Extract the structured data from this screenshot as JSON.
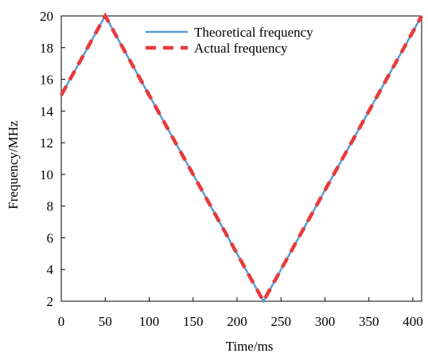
{
  "chart_data": {
    "type": "line",
    "xlabel": "Time/ms",
    "ylabel": "Frequency/MHz",
    "xlim": [
      0,
      410
    ],
    "ylim": [
      2,
      20
    ],
    "xticks": [
      0,
      50,
      100,
      150,
      200,
      250,
      300,
      350,
      400
    ],
    "yticks": [
      2,
      4,
      6,
      8,
      10,
      12,
      14,
      16,
      18,
      20
    ],
    "grid": false,
    "legend_position": "top-center",
    "series": [
      {
        "name": "Theoretical frequency",
        "style": "solid",
        "color": "#5B9BD5",
        "x": [
          0,
          50,
          230,
          410
        ],
        "y": [
          15,
          20,
          2,
          20
        ]
      },
      {
        "name": "Actual frequency",
        "style": "dashed",
        "color": "#E8393A",
        "x": [
          0,
          50,
          230,
          410
        ],
        "y": [
          15,
          20,
          2,
          20
        ]
      }
    ]
  }
}
